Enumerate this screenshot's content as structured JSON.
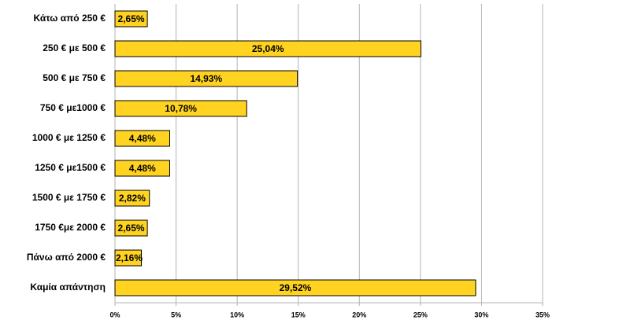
{
  "chart_data": {
    "type": "bar",
    "orientation": "horizontal",
    "categories": [
      "Κάτω από 250 €",
      "250 € με 500 €",
      "500 € με 750 €",
      "750 € με1000 €",
      "1000 € με 1250 €",
      "1250 € με1500 €",
      "1500 € με 1750 €",
      "1750 €με 2000 €",
      "Πάνω από 2000 €",
      "Καμία απάντηση"
    ],
    "values": [
      2.65,
      25.04,
      14.93,
      10.78,
      4.48,
      4.48,
      2.82,
      2.65,
      2.16,
      29.52
    ],
    "value_labels": [
      "2,65%",
      "25,04%",
      "14,93%",
      "10,78%",
      "4,48%",
      "4,48%",
      "2,82%",
      "2,65%",
      "2,16%",
      "29,52%"
    ],
    "color": "#ffd320",
    "xlim": [
      0,
      35
    ],
    "xticks": [
      {
        "value": 0,
        "label": "0%"
      },
      {
        "value": 5,
        "label": "5%"
      },
      {
        "value": 10,
        "label": "10%"
      },
      {
        "value": 15,
        "label": "15%"
      },
      {
        "value": 20,
        "label": "20%"
      },
      {
        "value": 25,
        "label": "25%"
      },
      {
        "value": 30,
        "label": "30%"
      },
      {
        "value": 35,
        "label": "35%"
      }
    ],
    "grid": true
  }
}
